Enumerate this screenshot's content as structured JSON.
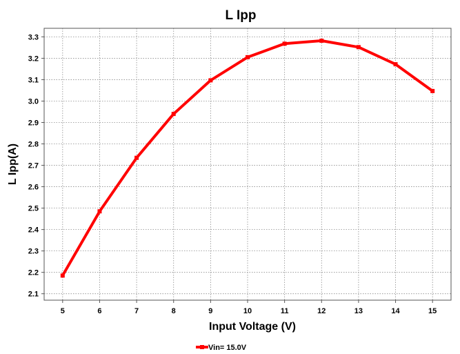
{
  "chart_data": {
    "type": "line",
    "title": "L Ipp",
    "xlabel": "Input Voltage (V)",
    "ylabel": "L Ipp(A)",
    "x": [
      5,
      6,
      7,
      8,
      9,
      10,
      11,
      12,
      13,
      14,
      15
    ],
    "xticks": [
      "5",
      "6",
      "7",
      "8",
      "9",
      "10",
      "11",
      "12",
      "13",
      "14",
      "15"
    ],
    "yticks": [
      "2.1",
      "2.2",
      "2.3",
      "2.4",
      "2.5",
      "2.6",
      "2.7",
      "2.8",
      "2.9",
      "3.0",
      "3.1",
      "3.2",
      "3.3"
    ],
    "xlim": [
      4.5,
      15.5
    ],
    "ylim": [
      2.07,
      3.34
    ],
    "grid": true,
    "legend_position": "bottom-center",
    "series": [
      {
        "name": "Vin= 15.0V",
        "color": "#ff0000",
        "values": [
          2.185,
          2.485,
          2.735,
          2.94,
          3.097,
          3.205,
          3.268,
          3.282,
          3.252,
          3.172,
          3.047
        ]
      }
    ]
  }
}
